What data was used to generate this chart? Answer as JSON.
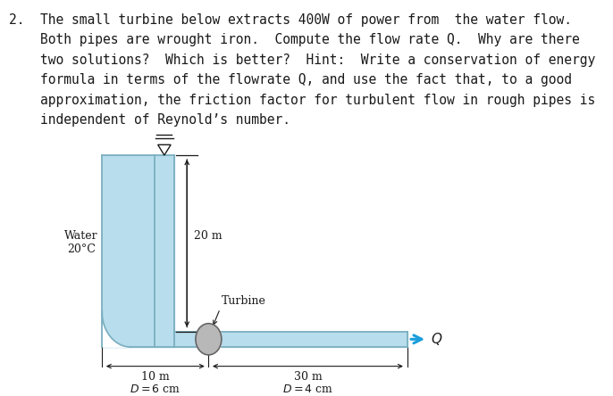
{
  "bg_color": "#ffffff",
  "text_color": "#1a1a1a",
  "water_color": "#b8dded",
  "pipe_border_color": "#7aafc0",
  "turbine_color": "#b8b8b8",
  "turbine_edge_color": "#666666",
  "arrow_color": "#1a9edc",
  "problem_lines": [
    "2.  The small turbine below extracts 400W of power from  the  water  flow.",
    "    Both pipes are wrought iron.  Compute the flow rate $Q$.  Why are there",
    "    two solutions?  Which is better?  Hint:  Write a conservation of energy",
    "    formula in terms of the flowrate Q, and use the fact that, to a good",
    "    approximation, the friction factor for turbulent flow in rough pipes is",
    "    independent of Reynold’s number."
  ],
  "label_water": "Water\n20°C",
  "label_20m": "20 m",
  "label_turbine": "Turbine",
  "label_10m": "10 m",
  "label_D6": "$D = 6$ cm",
  "label_30m": "30 m",
  "label_D4": "$D = 4$ cm",
  "label_Q": "$Q$",
  "font_size_body": 10.5,
  "font_size_diagram": 9.0
}
